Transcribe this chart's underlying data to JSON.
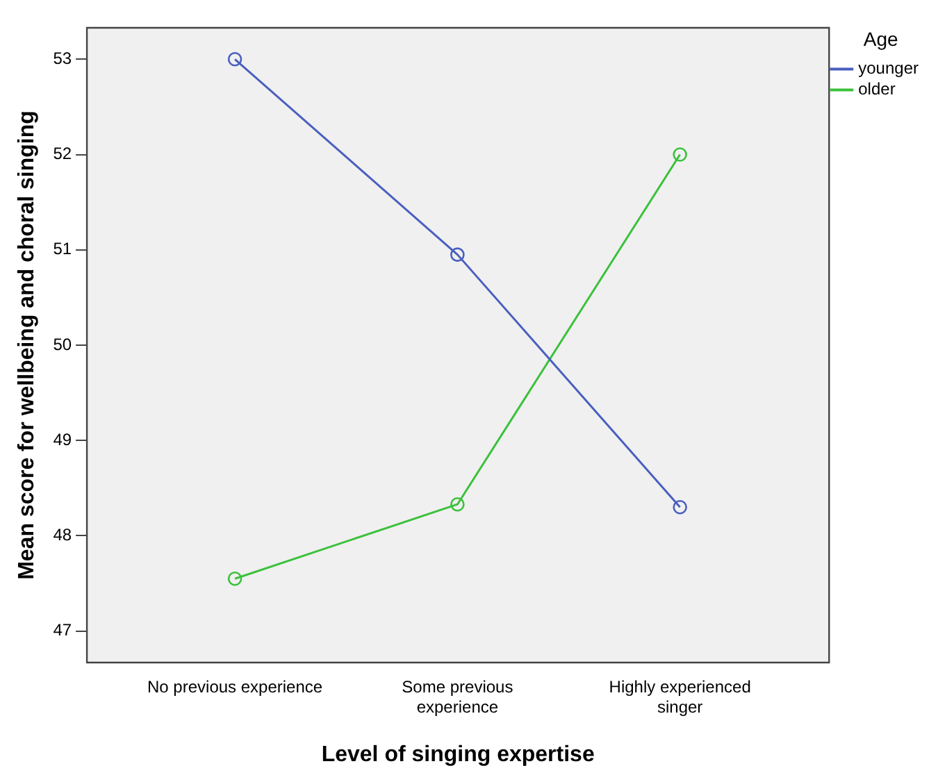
{
  "chart_data": {
    "type": "line",
    "xlabel": "Level of singing expertise",
    "ylabel": "Mean score for wellbeing and choral singing",
    "legend_title": "Age",
    "categories": [
      "No previous experience",
      "Some previous experience",
      "Highly experienced singer"
    ],
    "series": [
      {
        "name": "younger",
        "color": "#4a5fbf",
        "values": [
          53.0,
          50.95,
          48.3
        ]
      },
      {
        "name": "older",
        "color": "#3cc13c",
        "values": [
          47.55,
          48.33,
          52.0
        ]
      }
    ],
    "ylim": [
      46.67,
      53.33
    ],
    "yticks": [
      47,
      48,
      49,
      50,
      51,
      52,
      53
    ],
    "grid": false,
    "legend": "top right",
    "marker": "circle",
    "line_style": "solid"
  }
}
